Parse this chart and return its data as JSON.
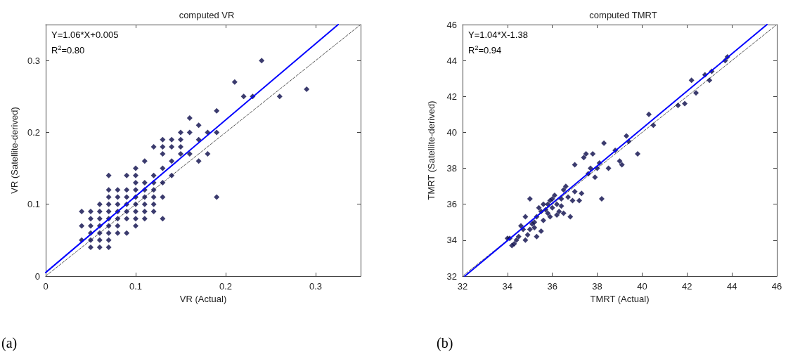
{
  "chart_data": [
    {
      "type": "scatter",
      "title": "computed VR",
      "xlabel": "VR (Actual)",
      "ylabel": "VR (Satellite-derived)",
      "xlim": [
        0,
        0.35
      ],
      "ylim": [
        0,
        0.35
      ],
      "xticks": [
        0,
        0.1,
        0.2,
        0.3
      ],
      "yticks": [
        0,
        0.1,
        0.2,
        0.3
      ],
      "grid": false,
      "annotations": [
        "Y=1.06*X+0.005",
        "R$^{2}$=0.80",
        "(a)"
      ],
      "series": [
        {
          "marker": "diamond",
          "color": "#0a0a4a",
          "x": [
            0.04,
            0.04,
            0.04,
            0.05,
            0.05,
            0.05,
            0.05,
            0.05,
            0.05,
            0.06,
            0.06,
            0.06,
            0.06,
            0.06,
            0.06,
            0.06,
            0.07,
            0.07,
            0.07,
            0.07,
            0.07,
            0.07,
            0.07,
            0.07,
            0.07,
            0.07,
            0.08,
            0.08,
            0.08,
            0.08,
            0.08,
            0.08,
            0.08,
            0.09,
            0.09,
            0.09,
            0.09,
            0.09,
            0.09,
            0.09,
            0.1,
            0.1,
            0.1,
            0.1,
            0.1,
            0.1,
            0.1,
            0.1,
            0.1,
            0.11,
            0.11,
            0.11,
            0.11,
            0.11,
            0.11,
            0.11,
            0.12,
            0.12,
            0.12,
            0.12,
            0.12,
            0.12,
            0.12,
            0.13,
            0.13,
            0.13,
            0.13,
            0.13,
            0.13,
            0.13,
            0.14,
            0.14,
            0.14,
            0.14,
            0.15,
            0.15,
            0.15,
            0.15,
            0.16,
            0.16,
            0.16,
            0.17,
            0.17,
            0.17,
            0.18,
            0.18,
            0.19,
            0.19,
            0.19,
            0.21,
            0.22,
            0.23,
            0.24,
            0.26,
            0.29
          ],
          "values": [
            0.05,
            0.07,
            0.09,
            0.04,
            0.05,
            0.06,
            0.07,
            0.08,
            0.09,
            0.04,
            0.05,
            0.06,
            0.07,
            0.08,
            0.09,
            0.1,
            0.04,
            0.05,
            0.06,
            0.07,
            0.08,
            0.09,
            0.1,
            0.11,
            0.12,
            0.14,
            0.06,
            0.07,
            0.08,
            0.09,
            0.1,
            0.11,
            0.12,
            0.06,
            0.08,
            0.09,
            0.1,
            0.11,
            0.12,
            0.14,
            0.07,
            0.08,
            0.09,
            0.1,
            0.11,
            0.12,
            0.13,
            0.14,
            0.15,
            0.08,
            0.09,
            0.1,
            0.11,
            0.12,
            0.13,
            0.16,
            0.09,
            0.1,
            0.11,
            0.12,
            0.13,
            0.14,
            0.18,
            0.08,
            0.11,
            0.13,
            0.15,
            0.17,
            0.18,
            0.19,
            0.14,
            0.16,
            0.18,
            0.19,
            0.17,
            0.18,
            0.19,
            0.2,
            0.17,
            0.2,
            0.22,
            0.16,
            0.19,
            0.21,
            0.17,
            0.2,
            0.11,
            0.2,
            0.23,
            0.27,
            0.25,
            0.25,
            0.3,
            0.25,
            0.26
          ]
        },
        {
          "type": "line",
          "marker": "none",
          "color": "#0000ff",
          "line_style": "solid",
          "x": [
            0,
            0.325
          ],
          "values": [
            0.005,
            0.35
          ]
        },
        {
          "type": "line",
          "marker": "none",
          "color": "#555555",
          "line_style": "dashed",
          "x": [
            0,
            0.35
          ],
          "values": [
            0,
            0.35
          ]
        }
      ]
    },
    {
      "type": "scatter",
      "title": "computed TMRT",
      "xlabel": "TMRT (Actual)",
      "ylabel": "TMRT (Satellite-derived)",
      "xlim": [
        32,
        46
      ],
      "ylim": [
        32,
        46
      ],
      "xticks": [
        32,
        34,
        36,
        38,
        40,
        42,
        44,
        46
      ],
      "yticks": [
        32,
        34,
        36,
        38,
        40,
        42,
        44,
        46
      ],
      "grid": false,
      "annotations": [
        "Y=1.04*X-1.38",
        "R$^{2}$=0.94",
        "(b)"
      ],
      "series": [
        {
          "marker": "diamond",
          "color": "#0a0a4a",
          "x": [
            34.1,
            34.2,
            34.3,
            34.4,
            34.5,
            34.6,
            34.7,
            34.8,
            34.9,
            35,
            35,
            35.1,
            35.2,
            35.3,
            35.3,
            35.4,
            35.5,
            35.5,
            35.6,
            35.7,
            35.8,
            35.9,
            36,
            36.1,
            36.2,
            36.3,
            36.4,
            36.5,
            36.5,
            36.6,
            36.7,
            36.8,
            36.9,
            37,
            37,
            37.2,
            37.3,
            37.4,
            37.5,
            37.6,
            37.7,
            37.8,
            37.9,
            38,
            38.1,
            38.2,
            38.3,
            38.5,
            38.8,
            39,
            39.1,
            39.3,
            39.4,
            39.8,
            40.3,
            40.5,
            41.6,
            41.9,
            42.2,
            42.4,
            42.8,
            43,
            43.1,
            43.7,
            43.8,
            34,
            34.8,
            35.2,
            35.6,
            35.9,
            36.2,
            36,
            36.4,
            35.8
          ],
          "values": [
            34.1,
            33.7,
            33.8,
            34,
            34.2,
            34.8,
            34.6,
            34,
            34.3,
            36.3,
            34.6,
            34.9,
            35,
            35.3,
            34.2,
            35.8,
            35.6,
            34.5,
            36,
            35.7,
            35.5,
            36.2,
            35.8,
            36.5,
            36,
            35.6,
            36.3,
            36.8,
            35.5,
            37,
            36.4,
            35.3,
            36.2,
            38.2,
            36.7,
            36.2,
            36.6,
            38.6,
            38.8,
            37.7,
            38,
            38.8,
            37.5,
            38,
            38.3,
            36.3,
            39.4,
            38,
            39,
            38.4,
            38.2,
            39.8,
            39.5,
            38.8,
            41,
            40.4,
            41.5,
            41.6,
            42.9,
            42.2,
            43.2,
            42.9,
            43.4,
            44,
            44.2,
            34.1,
            35.3,
            34.7,
            35.1,
            35.3,
            35.4,
            36.3,
            35.9,
            36
          ]
        },
        {
          "type": "line",
          "marker": "none",
          "color": "#0000ff",
          "line_style": "solid",
          "x": [
            32.1,
            45.56
          ],
          "values": [
            32,
            46
          ]
        },
        {
          "type": "line",
          "marker": "none",
          "color": "#555555",
          "line_style": "dashed",
          "x": [
            32,
            46
          ],
          "values": [
            32,
            46
          ]
        }
      ]
    }
  ]
}
